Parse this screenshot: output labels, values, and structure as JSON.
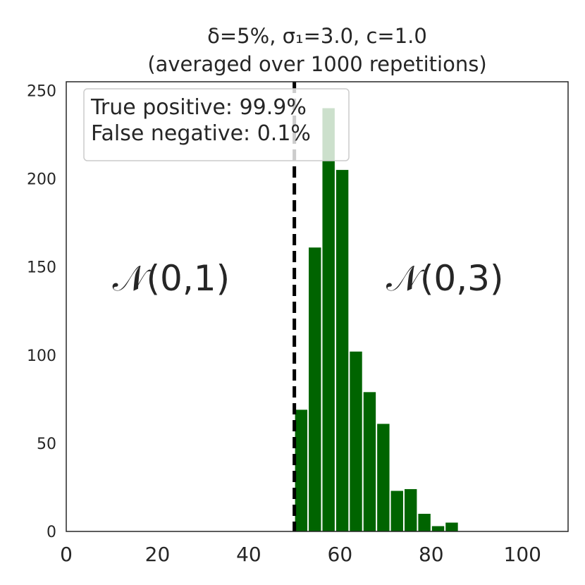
{
  "chart_data": {
    "type": "bar",
    "title": {
      "line1": "δ=5%, σ₁=3.0, c=1.0",
      "line2": "(averaged over 1000 repetitions)"
    },
    "xlim": [
      0,
      110
    ],
    "ylim": [
      0,
      255
    ],
    "x_ticks": [
      0,
      20,
      40,
      60,
      80,
      100
    ],
    "y_ticks": [
      0,
      50,
      100,
      150,
      200,
      250
    ],
    "grid": false,
    "bar_color": "#006400",
    "bin_width": 3,
    "bins": [
      {
        "x": 50,
        "value": 69
      },
      {
        "x": 53,
        "value": 161
      },
      {
        "x": 56,
        "value": 240
      },
      {
        "x": 59,
        "value": 205
      },
      {
        "x": 62,
        "value": 102
      },
      {
        "x": 65,
        "value": 79
      },
      {
        "x": 68,
        "value": 61
      },
      {
        "x": 71,
        "value": 23
      },
      {
        "x": 74,
        "value": 24
      },
      {
        "x": 77,
        "value": 10
      },
      {
        "x": 80,
        "value": 3
      },
      {
        "x": 83,
        "value": 5
      }
    ],
    "threshold": {
      "x": 50,
      "style": "dashed",
      "color": "#000000"
    },
    "legend": {
      "placement": "top-left",
      "lines": [
        "True positive: 99.9%",
        "False negative: 0.1%"
      ]
    },
    "annotations": [
      {
        "text": "𝒩(0,1)",
        "x": 23,
        "y": 143
      },
      {
        "text": "𝒩(0,3)",
        "x": 83,
        "y": 143
      }
    ]
  }
}
